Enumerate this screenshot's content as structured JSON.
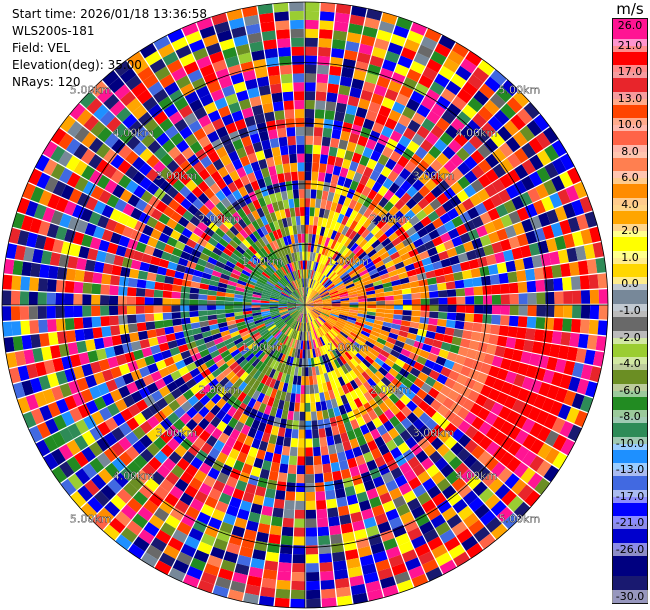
{
  "info": {
    "start_time": "Start time: 2026/01/18 13:36:58",
    "site": "WLS200s-181",
    "field": "Field: VEL",
    "elevation": "Elevation(deg): 35.00",
    "nrays": "NRays: 120"
  },
  "colorbar": {
    "title": "m/s",
    "bins": [
      {
        "label": "26.0",
        "color": "#ff1493"
      },
      {
        "label": "21.0",
        "color": "#ff0000"
      },
      {
        "label": "17.0",
        "color": "#e8252b"
      },
      {
        "label": "13.0",
        "color": "#ff4500"
      },
      {
        "label": "10.0",
        "color": "#ff6347"
      },
      {
        "label": "8.0",
        "color": "#ff7f50"
      },
      {
        "label": "6.0",
        "color": "#ff8c00"
      },
      {
        "label": "4.0",
        "color": "#ffa500"
      },
      {
        "label": "2.0",
        "color": "#ffff00"
      },
      {
        "label": "1.0",
        "color": "#ffd700"
      },
      {
        "label": "0.0",
        "color": "#778899"
      },
      {
        "label": "-1.0",
        "color": "#696969"
      },
      {
        "label": "-2.0",
        "color": "#9acd32"
      },
      {
        "label": "-4.0",
        "color": "#6b8e23"
      },
      {
        "label": "-6.0",
        "color": "#228b22"
      },
      {
        "label": "-8.0",
        "color": "#2e8b57"
      },
      {
        "label": "-10.0",
        "color": "#1e90ff"
      },
      {
        "label": "-13.0",
        "color": "#4169e1"
      },
      {
        "label": "-17.0",
        "color": "#0000ff"
      },
      {
        "label": "-21.0",
        "color": "#0000cd"
      },
      {
        "label": "-26.0",
        "color": "#000080"
      },
      {
        "label": "",
        "color": "#191970"
      }
    ],
    "min_label": "-30.0"
  },
  "chart_data": {
    "type": "heatmap",
    "title": "",
    "field": "VEL",
    "units": "m/s",
    "nrays": 120,
    "range_unit": "km",
    "range_max_km": 5.0,
    "range_rings_km": [
      1.0,
      2.0,
      3.0,
      4.0,
      5.0
    ],
    "range_ring_labels": [
      "1.00km",
      "2.00km",
      "3.00km",
      "4.00km",
      "5.00km"
    ],
    "value_range": [
      -30.0,
      30.0
    ],
    "pattern_notes": [
      "inner ~2 km shows coherent flow: positive (yellow/orange) toward east, negative (green) toward west",
      "beyond ~2 km data is mostly noise (random colors)",
      "coherent strong positive band (orange to pink) east-southeast between ~2.5 and 4.5 km"
    ]
  }
}
